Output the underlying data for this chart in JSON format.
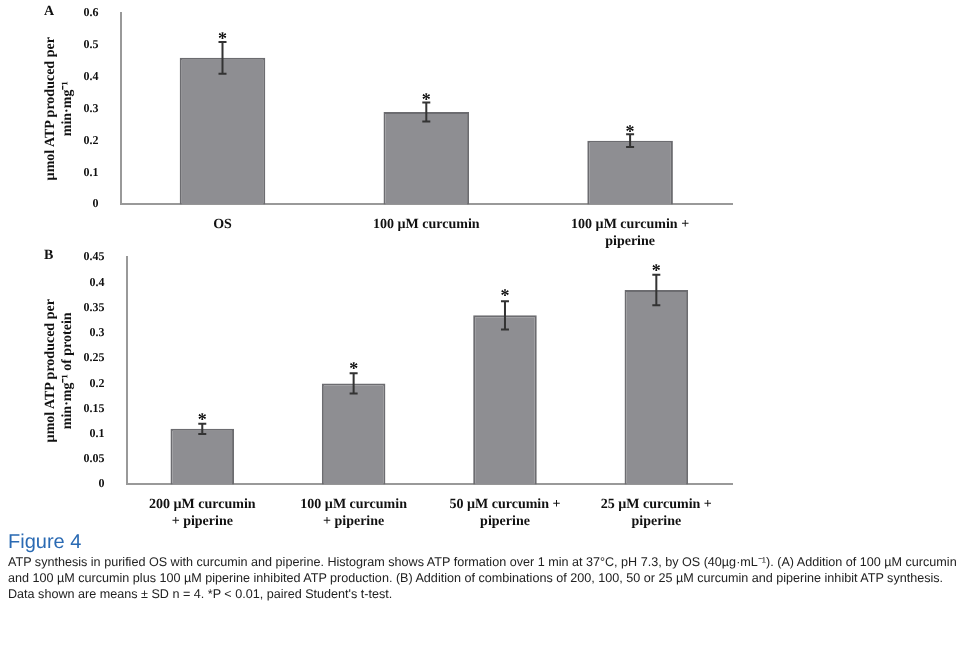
{
  "chart_data": [
    {
      "type": "bar",
      "title": "A",
      "ylabel": "µmol ATP produced per min·mg⁻¹",
      "categories": [
        "OS",
        "100 µM curcumin",
        "100 µM curcumin + piperine"
      ],
      "values": [
        0.46,
        0.29,
        0.2
      ],
      "errors": [
        0.05,
        0.03,
        0.02
      ],
      "color": "#8e8e92",
      "ylim": [
        0,
        0.6
      ],
      "yticks": [
        0,
        0.1,
        0.2,
        0.3,
        0.4,
        0.5,
        0.6
      ],
      "grid": false,
      "legend": false,
      "annotations": [
        {
          "text": "*",
          "x": "OS",
          "y": 0.53
        },
        {
          "text": "*",
          "x": "100 µM curcumin",
          "y": 0.34
        },
        {
          "text": "*",
          "x": "100 µM curcumin + piperine",
          "y": 0.24
        }
      ]
    },
    {
      "type": "bar",
      "title": "B",
      "ylabel": "µmol ATP produced per min·mg⁻¹ of protein",
      "categories": [
        "200 µM curcumin + piperine",
        "100 µM curcumin + piperine",
        "50 µM curcumin + piperine",
        "25 µM curcumin + piperine"
      ],
      "values": [
        0.11,
        0.2,
        0.335,
        0.385
      ],
      "errors": [
        0.01,
        0.02,
        0.028,
        0.03
      ],
      "color": "#8e8e92",
      "ylim": [
        0,
        0.45
      ],
      "yticks": [
        0,
        0.05,
        0.1,
        0.15,
        0.2,
        0.25,
        0.3,
        0.35,
        0.4,
        0.45
      ],
      "grid": false,
      "legend": false,
      "annotations": [
        {
          "text": "*",
          "x": "200 µM curcumin + piperine",
          "y": 0.135
        },
        {
          "text": "*",
          "x": "100 µM curcumin + piperine",
          "y": 0.235
        },
        {
          "text": "*",
          "x": "50 µM curcumin + piperine",
          "y": 0.38
        },
        {
          "text": "*",
          "x": "25 µM curcumin + piperine",
          "y": 0.43
        },
        "Figure 4",
        "ATP synthesis in purified OS with curcumin and piperine. Histogram shows ATP formation over 1 min at 37°C, pH 7.3, by OS (40µg·mL⁻¹). (A) Addition of 100 µM curcumin and 100 µM curcumin plus 100 µM piperine inhibited ATP production. (B) Addition of combinations of 200, 100, 50 or 25 µM curcumin and piperine inhibit ATP synthesis. Data shown are means ± SD n = 4. *P < 0.01, paired Student's t-test."
      ]
    }
  ]
}
